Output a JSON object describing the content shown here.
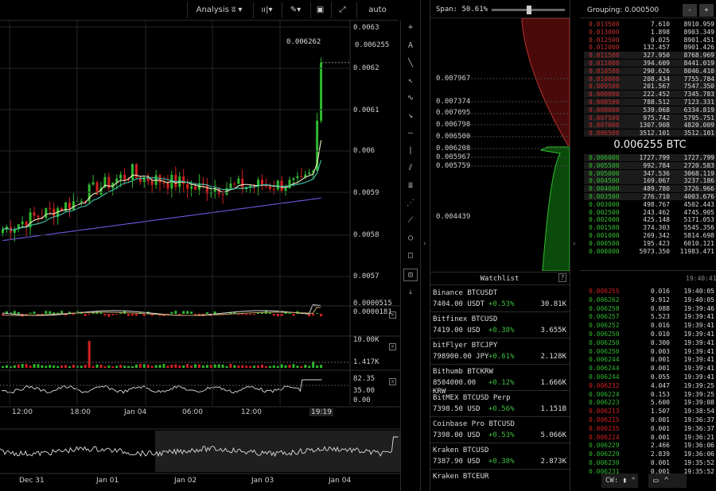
{
  "toolbar": {
    "analysis": "Analysis",
    "scale_mode": "auto"
  },
  "chart_data": [
    {
      "type": "candlestick",
      "title": "",
      "ylim": [
        0.00565,
        0.00635
      ],
      "y_ticks": [
        "0.0063",
        "0.006255",
        "0.0062",
        "0.0061",
        "0.006",
        "0.0059",
        "0.0058",
        "0.0057"
      ],
      "x_ticks": [
        "12:00",
        "18:00",
        "Jan 04",
        "06:00",
        "12:00",
        "19:19"
      ],
      "high_label": "0.006262",
      "last_price": "0.006255"
    },
    {
      "type": "line",
      "title": "MACD",
      "labels": [
        "0.0000515",
        "0.0000181"
      ]
    },
    {
      "type": "bar",
      "title": "Volume",
      "labels": [
        "10.00K",
        "1.417K"
      ]
    },
    {
      "type": "line",
      "title": "Oscillator",
      "labels": [
        "82.35",
        "35.00",
        "0.00"
      ]
    },
    {
      "type": "line",
      "title": "Navigator",
      "x_ticks": [
        "Dec 31",
        "Jan 01",
        "Jan 02",
        "Jan 03",
        "Jan 04"
      ]
    },
    {
      "type": "area",
      "title": "Depth",
      "span_label": "Span:",
      "span_value": "50.61%",
      "span_fraction": 0.5061,
      "price_ticks": [
        "0.007967",
        "0.007374",
        "0.007095",
        "0.006798",
        "0.006500",
        "0.006208",
        "0.005967",
        "0.005759",
        "0.004439"
      ]
    }
  ],
  "watchlist": {
    "title": "Watchlist",
    "help": "?",
    "items": [
      {
        "name": "Binance BTCUSDT",
        "price": "7404.00 USDT",
        "change": "+0.53%",
        "volume": "30.81K"
      },
      {
        "name": "Bitfinex BTCUSD",
        "price": "7419.00 USD",
        "change": "+0.38%",
        "volume": "3.655K"
      },
      {
        "name": "bitFlyer BTCJPY",
        "price": "798900.00 JPY",
        "change": "+0.61%",
        "volume": "2.128K"
      },
      {
        "name": "Bithumb BTCKRW",
        "price": "8504000.00",
        "price_line2": "KRW",
        "change": "+0.12%",
        "volume": "1.666K"
      },
      {
        "name": "BitMEX BTCUSD Perp",
        "price": "7398.50 USD",
        "change": "+0.56%",
        "volume": "1.151B"
      },
      {
        "name": "Coinbase Pro BTCUSD",
        "price": "7398.00 USD",
        "change": "+0.53%",
        "volume": "5.066K"
      },
      {
        "name": "Kraken BTCUSD",
        "price": "7387.90 USD",
        "change": "+0.38%",
        "volume": "2.873K"
      },
      {
        "name": "Kraken BTCEUR",
        "price": "",
        "change": "",
        "volume": ""
      }
    ]
  },
  "orderbook": {
    "grouping_label": "Grouping: 0.000500",
    "minus": "-",
    "plus": "+",
    "mid_price": "0.006255",
    "mid_currency": "BTC",
    "asks": [
      [
        "0.013500",
        "7.610",
        "8910.959"
      ],
      [
        "0.013000",
        "1.898",
        "8903.349"
      ],
      [
        "0.012500",
        "0.025",
        "8901.451"
      ],
      [
        "0.012000",
        "132.457",
        "8901.426"
      ],
      [
        "0.011500",
        "327.950",
        "8768.969"
      ],
      [
        "0.011000",
        "394.609",
        "8441.019"
      ],
      [
        "0.010500",
        "290.626",
        "8046.410"
      ],
      [
        "0.010000",
        "208.434",
        "7755.784"
      ],
      [
        "0.009500",
        "201.567",
        "7547.350"
      ],
      [
        "0.009000",
        "222.452",
        "7345.783"
      ],
      [
        "0.008500",
        "788.512",
        "7123.331"
      ],
      [
        "0.008000",
        "539.068",
        "6334.819"
      ],
      [
        "0.007500",
        "975.742",
        "5795.751"
      ],
      [
        "0.007000",
        "1307.908",
        "4820.009"
      ],
      [
        "0.006500",
        "3512.101",
        "3512.101"
      ]
    ],
    "bids": [
      [
        "0.006000",
        "1727.799",
        "1727.799"
      ],
      [
        "0.005500",
        "992.784",
        "2720.583"
      ],
      [
        "0.005000",
        "347.536",
        "3068.119"
      ],
      [
        "0.004500",
        "169.067",
        "3237.186"
      ],
      [
        "0.004000",
        "489.780",
        "3726.966"
      ],
      [
        "0.003500",
        "276.710",
        "4003.676"
      ],
      [
        "0.003000",
        "498.767",
        "4502.443"
      ],
      [
        "0.002500",
        "243.462",
        "4745.905"
      ],
      [
        "0.002000",
        "425.148",
        "5171.053"
      ],
      [
        "0.001500",
        "374.303",
        "5545.356"
      ],
      [
        "0.001000",
        "269.342",
        "5814.698"
      ],
      [
        "0.000500",
        "195.423",
        "6010.121"
      ],
      [
        "0.000000",
        "5973.350",
        "11983.471"
      ]
    ]
  },
  "trades": {
    "header_time": "19:40:41",
    "rows": [
      [
        "0.006255",
        "0.016",
        "19:40:05",
        "r"
      ],
      [
        "0.006262",
        "9.912",
        "19:40:05",
        "g"
      ],
      [
        "0.006258",
        "0.088",
        "19:39:46",
        "g"
      ],
      [
        "0.006257",
        "5.523",
        "19:39:41",
        "g"
      ],
      [
        "0.006252",
        "0.016",
        "19:39:41",
        "g"
      ],
      [
        "0.006250",
        "0.010",
        "19:39:41",
        "g"
      ],
      [
        "0.006250",
        "0.300",
        "19:39:41",
        "g"
      ],
      [
        "0.006250",
        "0.003",
        "19:39:41",
        "g"
      ],
      [
        "0.006244",
        "0.001",
        "19:39:41",
        "g"
      ],
      [
        "0.006244",
        "0.001",
        "19:39:41",
        "g"
      ],
      [
        "0.006244",
        "0.055",
        "19:39:41",
        "g"
      ],
      [
        "0.006232",
        "4.047",
        "19:39:25",
        "r"
      ],
      [
        "0.006224",
        "0.153",
        "19:39:25",
        "g"
      ],
      [
        "0.006223",
        "5.600",
        "19:39:08",
        "g"
      ],
      [
        "0.006213",
        "1.507",
        "19:38:54",
        "r"
      ],
      [
        "0.006215",
        "0.001",
        "19:36:37",
        "r"
      ],
      [
        "0.006235",
        "0.001",
        "19:36:37",
        "r"
      ],
      [
        "0.006224",
        "0.001",
        "19:36:21",
        "r"
      ],
      [
        "0.006229",
        "2.466",
        "19:36:06",
        "g"
      ],
      [
        "0.006229",
        "2.839",
        "19:36:06",
        "g"
      ],
      [
        "0.006230",
        "0.001",
        "19:35:52",
        "g"
      ],
      [
        "0.006231",
        "0.001",
        "19:35:52",
        "g"
      ]
    ]
  },
  "footer": {
    "cw_label": "CW:"
  },
  "colors": {
    "up": "#2fb82f",
    "down": "#d02020",
    "ma_fast": "#f2f2c8",
    "ma_mid": "#40c8b0",
    "ma_slow": "#6a5ae0"
  }
}
